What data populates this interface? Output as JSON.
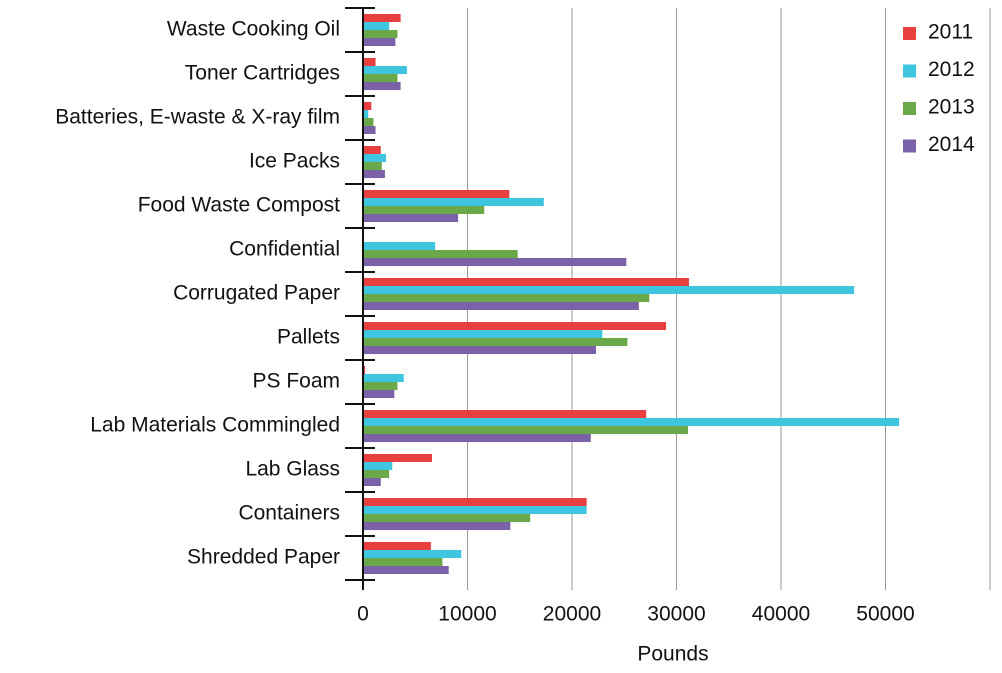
{
  "chart_data": {
    "type": "hbar",
    "categories": [
      "Waste Cooking Oil",
      "Toner Cartridges",
      "Batteries, E-waste & X-ray film",
      "Ice Packs",
      "Food Waste Compost",
      "Confidential",
      "Corrugated Paper",
      "Pallets",
      "PS Foam",
      "Lab Materials Commingled",
      "Lab Glass",
      "Containers",
      "Shredded Paper"
    ],
    "series": [
      {
        "name": "2011",
        "color": "#e8403e",
        "values": [
          3600,
          1200,
          800,
          1700,
          14000,
          0,
          31200,
          29000,
          200,
          27100,
          6600,
          21400,
          6500
        ]
      },
      {
        "name": "2012",
        "color": "#3ec6e0",
        "values": [
          2500,
          4200,
          500,
          2200,
          17300,
          6900,
          47000,
          22900,
          3900,
          51300,
          2800,
          21400,
          9400
        ]
      },
      {
        "name": "2013",
        "color": "#6aa84a",
        "values": [
          3300,
          3300,
          1000,
          1800,
          11600,
          14800,
          27400,
          25300,
          3300,
          31100,
          2500,
          16000,
          7600
        ]
      },
      {
        "name": "2014",
        "color": "#7a62a8",
        "values": [
          3100,
          3600,
          1200,
          2100,
          9100,
          25200,
          26400,
          22300,
          3000,
          21800,
          1700,
          14100,
          8200
        ]
      }
    ],
    "x_label": "Pounds",
    "xlim": [
      0,
      60000
    ],
    "xticks": [
      0,
      10000,
      20000,
      30000,
      40000,
      50000
    ],
    "grid": true,
    "legend": "top-right"
  }
}
